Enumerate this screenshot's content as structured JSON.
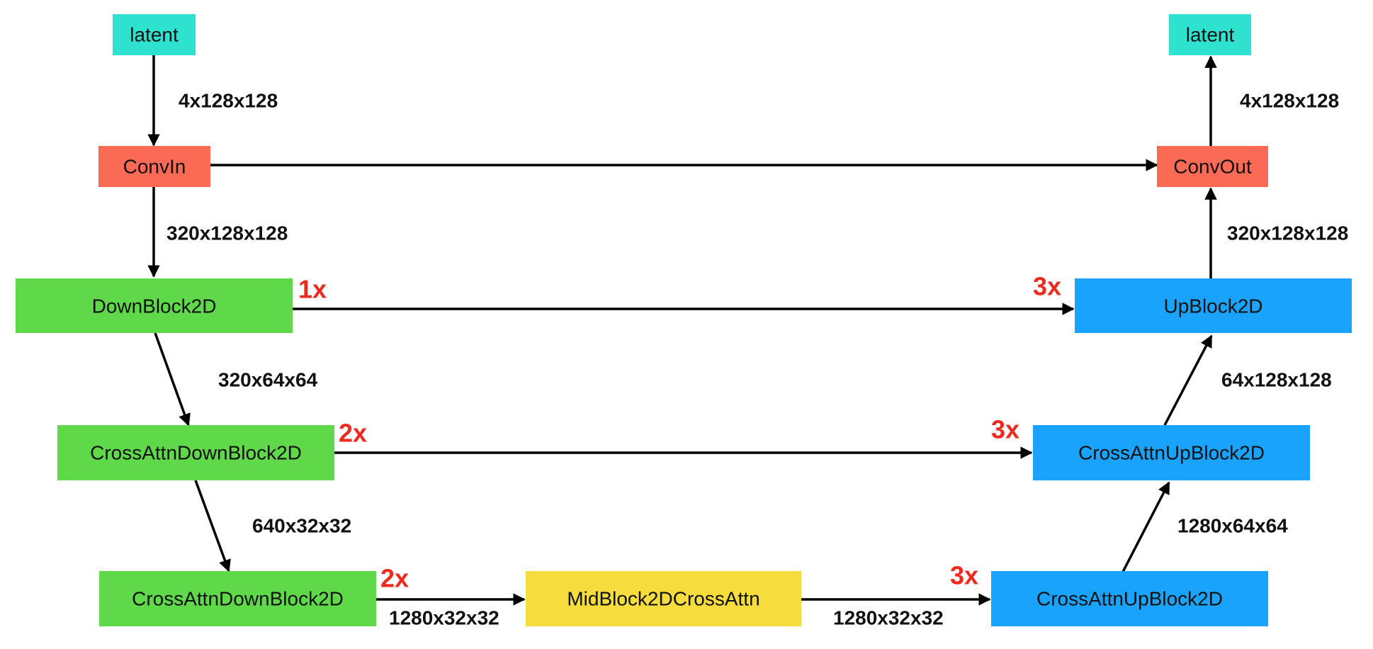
{
  "colors": {
    "latent": "#2ee2cf",
    "conv": "#fb6a55",
    "down": "#5fd94a",
    "mid": "#f6dd3d",
    "up": "#1aa3fc",
    "multiplier": "#ee2a1f",
    "edge": "#000000"
  },
  "nodes": {
    "latent_in": "latent",
    "latent_out": "latent",
    "conv_in": "ConvIn",
    "conv_out": "ConvOut",
    "down_block": "DownBlock2D",
    "cross_down_1": "CrossAttnDownBlock2D",
    "cross_down_2": "CrossAttnDownBlock2D",
    "mid_block": "MidBlock2DCrossAttn",
    "cross_up_1": "CrossAttnUpBlock2D",
    "cross_up_2": "CrossAttnUpBlock2D",
    "up_block": "UpBlock2D"
  },
  "shapes": {
    "latent_in_to_conv_in": "4x128x128",
    "conv_in_to_down": "320x128x128",
    "down_to_cross_down_1": "320x64x64",
    "cross_down_1_to_cross_down_2": "640x32x32",
    "cross_down_2_to_mid": "1280x32x32",
    "mid_to_cross_up_2": "1280x32x32",
    "cross_up_2_to_cross_up_1": "1280x64x64",
    "cross_up_1_to_up": "64x128x128",
    "up_to_conv_out": "320x128x128",
    "conv_out_to_latent": "4x128x128"
  },
  "multipliers": {
    "down_block": "1x",
    "cross_down_1": "2x",
    "cross_down_2": "2x",
    "up_block": "3x",
    "cross_up_1": "3x",
    "cross_up_2": "3x"
  }
}
